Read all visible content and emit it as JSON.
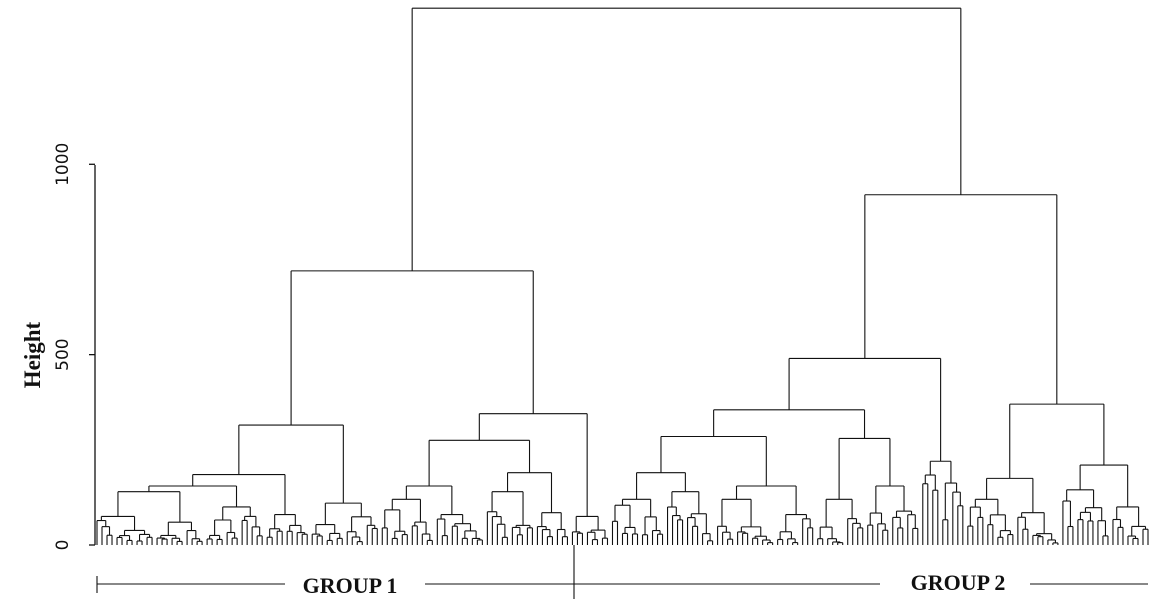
{
  "chart_data": {
    "type": "dendrogram",
    "ylabel": "Height",
    "ylim": [
      0,
      1400
    ],
    "yticks": [
      0,
      500,
      1000
    ],
    "groups": [
      {
        "label": "GROUP 1"
      },
      {
        "label": "GROUP 2"
      }
    ],
    "tree": {
      "h": 1410,
      "children": [
        {
          "h": 720,
          "children": [
            {
              "h": 315,
              "children": [
                {
                  "h": 185,
                  "children": [
                    {
                      "h": 155,
                      "children": [
                        {
                          "h": 140,
                          "children": [
                            {
                              "h": 75,
                              "leaves": 12
                            },
                            {
                              "h": 60,
                              "leaves": 10
                            }
                          ]
                        },
                        {
                          "h": 100,
                          "leaves": 12
                        }
                      ]
                    },
                    {
                      "h": 80,
                      "leaves": 9
                    }
                  ]
                },
                {
                  "h": 110,
                  "leaves": 14
                }
              ]
            },
            {
              "h": 345,
              "children": [
                {
                  "h": 275,
                  "children": [
                    {
                      "h": 155,
                      "children": [
                        {
                          "h": 120,
                          "leaves": 11
                        },
                        {
                          "h": 80,
                          "leaves": 10
                        }
                      ]
                    },
                    {
                      "h": 190,
                      "children": [
                        {
                          "h": 140,
                          "leaves": 10
                        },
                        {
                          "h": 85,
                          "leaves": 7
                        }
                      ]
                    }
                  ]
                },
                {
                  "h": 75,
                  "leaves": 8
                }
              ]
            }
          ]
        },
        {
          "h": 920,
          "children": [
            {
              "h": 490,
              "children": [
                {
                  "h": 355,
                  "children": [
                    {
                      "h": 285,
                      "children": [
                        {
                          "h": 190,
                          "children": [
                            {
                              "h": 120,
                              "leaves": 11
                            },
                            {
                              "h": 140,
                              "leaves": 10
                            }
                          ]
                        },
                        {
                          "h": 155,
                          "children": [
                            {
                              "h": 120,
                              "leaves": 12
                            },
                            {
                              "h": 80,
                              "leaves": 8
                            }
                          ]
                        }
                      ]
                    },
                    {
                      "h": 280,
                      "children": [
                        {
                          "h": 120,
                          "leaves": 10
                        },
                        {
                          "h": 155,
                          "leaves": 11
                        }
                      ]
                    }
                  ]
                },
                {
                  "h": 220,
                  "leaves": 9
                }
              ]
            },
            {
              "h": 370,
              "children": [
                {
                  "h": 175,
                  "children": [
                    {
                      "h": 120,
                      "leaves": 10
                    },
                    {
                      "h": 85,
                      "leaves": 9
                    }
                  ]
                },
                {
                  "h": 210,
                  "children": [
                    {
                      "h": 145,
                      "leaves": 10
                    },
                    {
                      "h": 100,
                      "leaves": 8
                    }
                  ]
                }
              ]
            }
          ]
        }
      ]
    }
  }
}
